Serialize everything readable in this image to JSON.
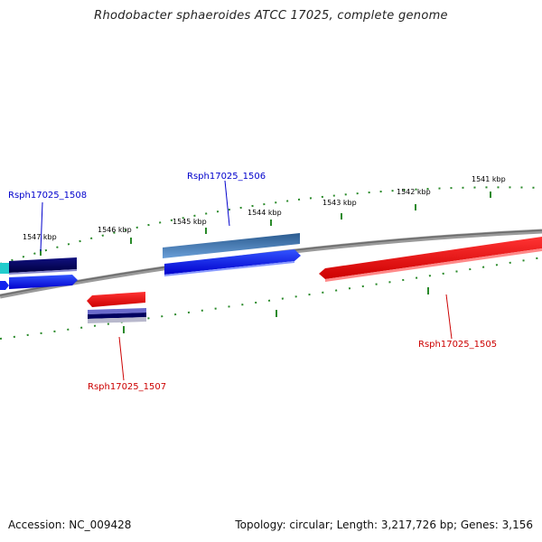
{
  "title": "Rhodobacter sphaeroides ATCC 17025, complete genome",
  "kbp_labels": [
    "1547 kbp",
    "1546 kbp",
    "1545 kbp",
    "1544 kbp",
    "1543 kbp",
    "1542 kbp",
    "1541 kbp"
  ],
  "genes": [
    {
      "name": "Rsph17025_1508",
      "color": "#0000cc"
    },
    {
      "name": "Rsph17025_1506",
      "color": "#0000cc"
    },
    {
      "name": "Rsph17025_1505",
      "color": "#cc0000"
    },
    {
      "name": "Rsph17025_1507",
      "color": "#cc0000"
    }
  ],
  "footer": {
    "accession": "Accession: NC_009428",
    "summary": "Topology: circular; Length: 3,217,726 bp; Genes: 3,156"
  },
  "colors": {
    "tick": "#2a8a2a",
    "backbone": "#7a7a7a",
    "forward": "#0022ee",
    "reverse": "#ee1111",
    "navy": "#0a0a6e",
    "steelblue": "#3d6fa8",
    "cyan": "#22cccc"
  }
}
